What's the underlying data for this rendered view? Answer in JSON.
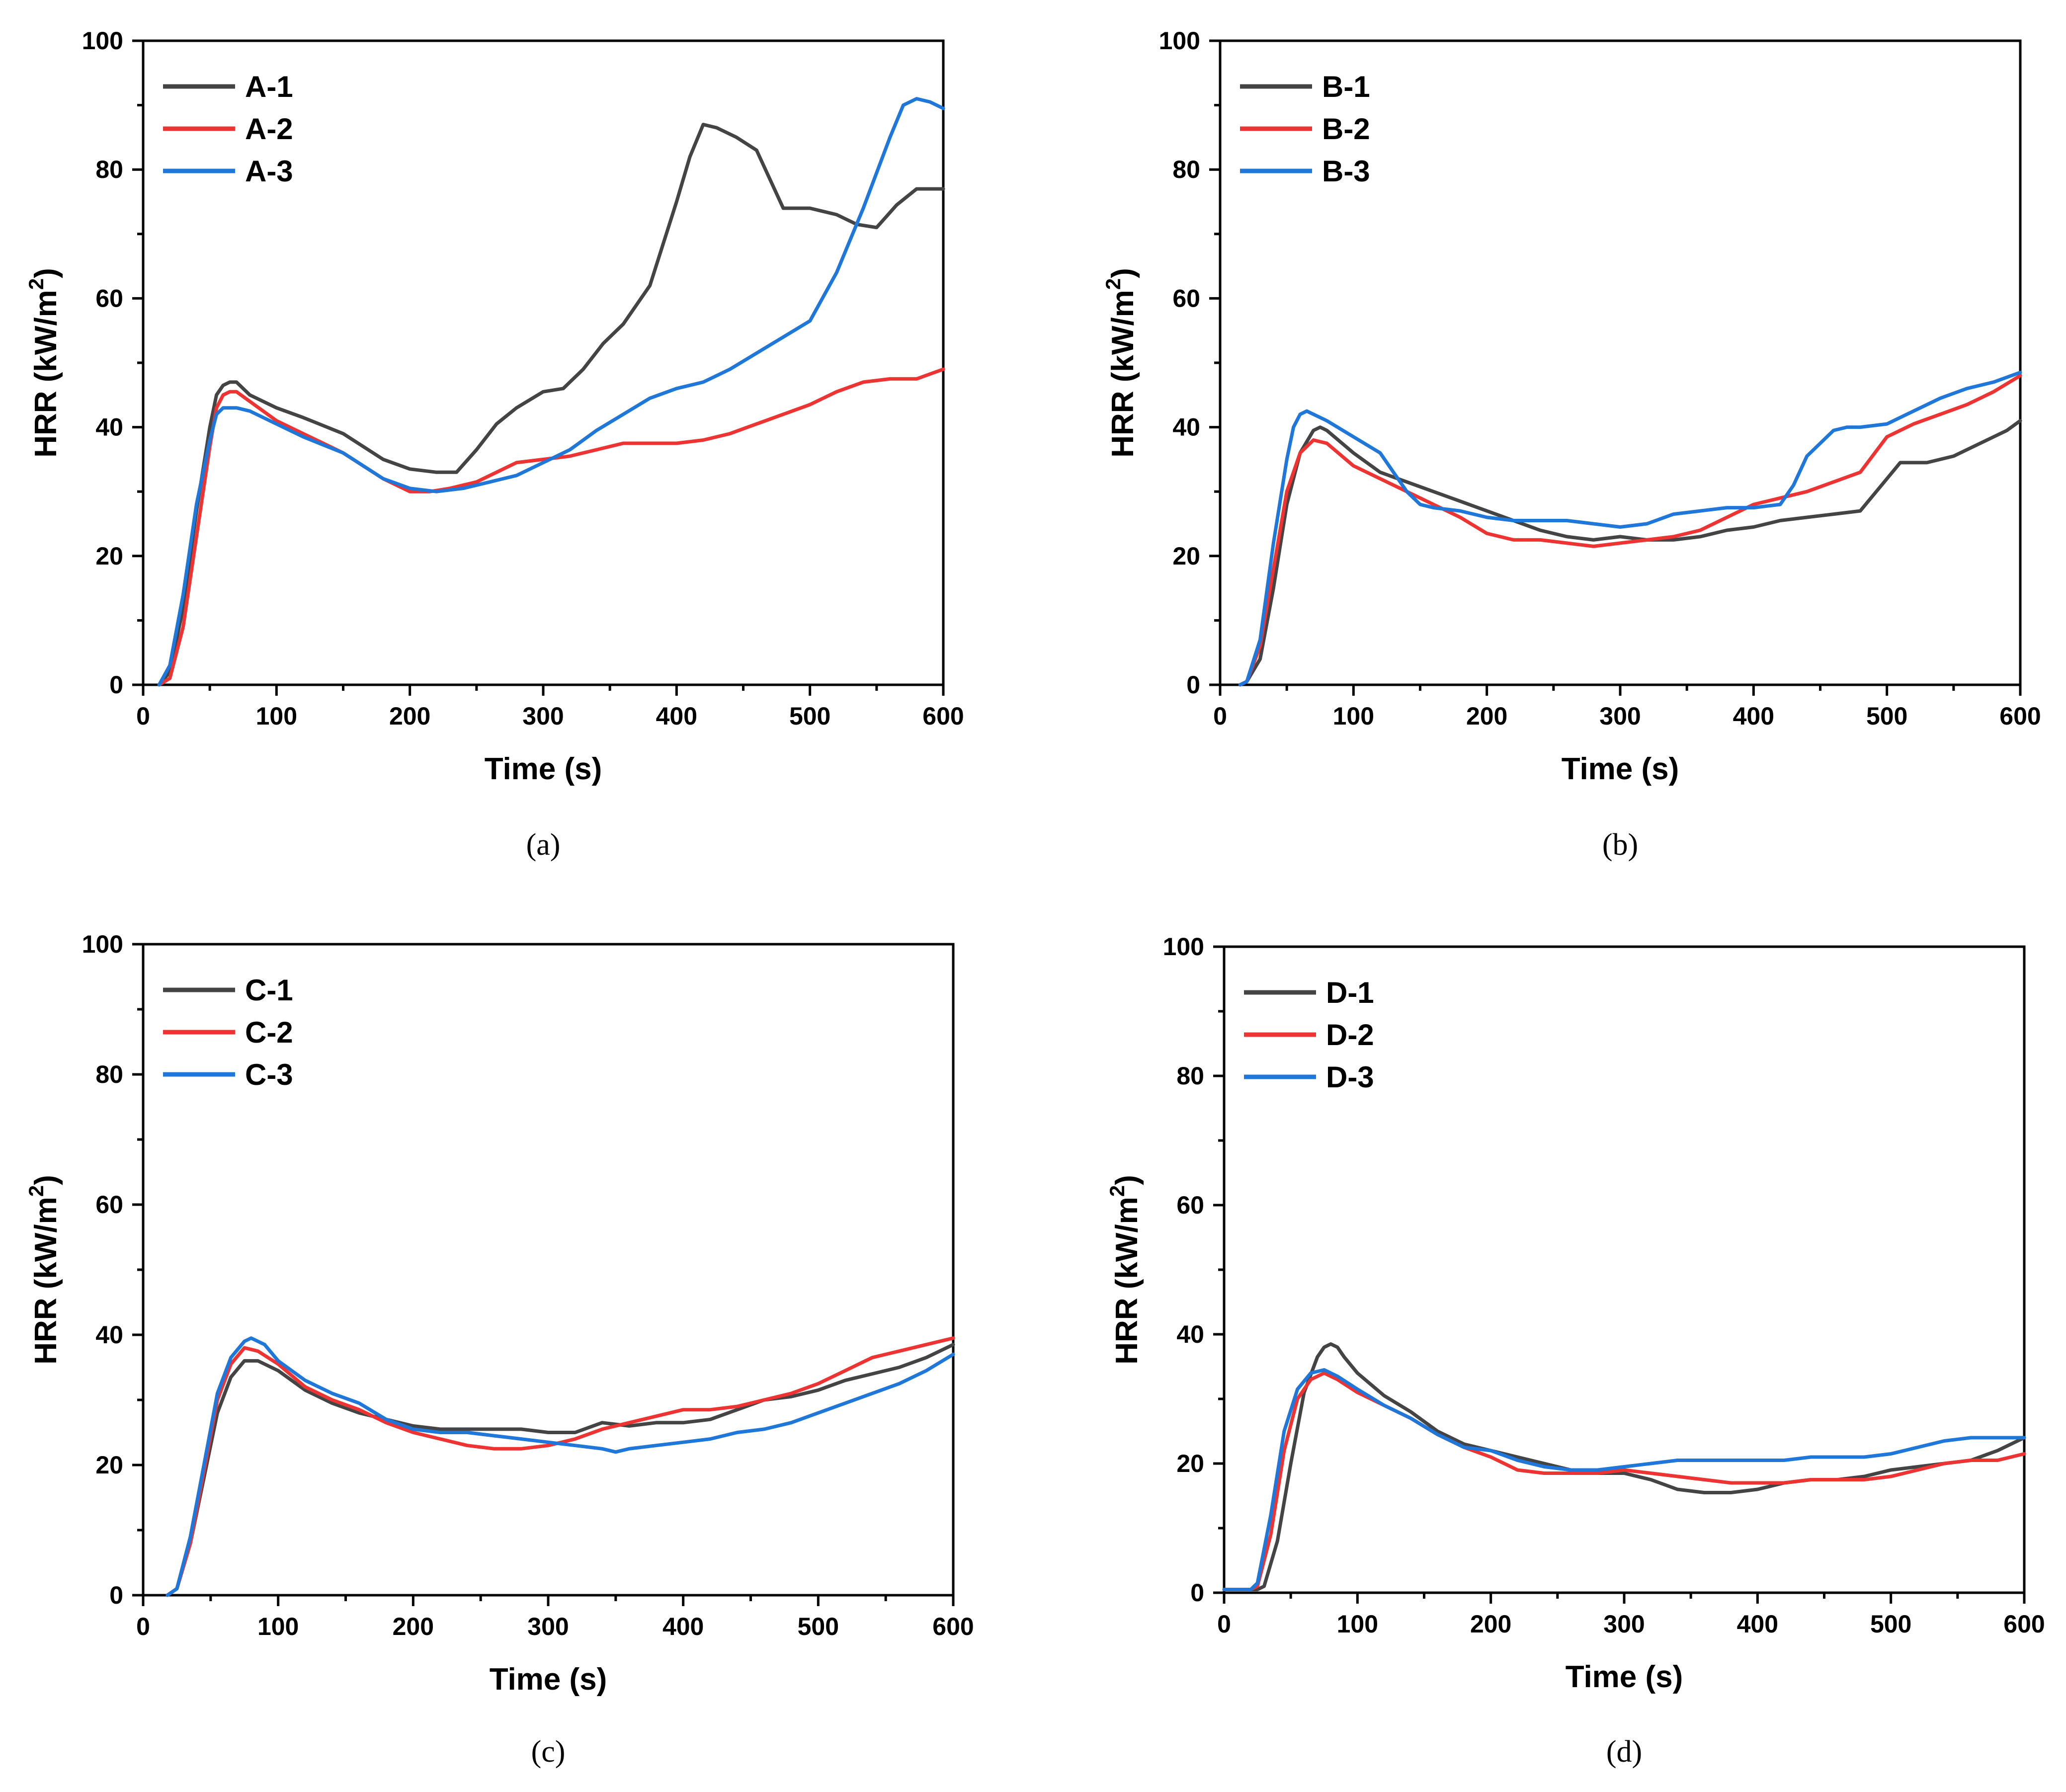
{
  "colors": {
    "series1": "#444444",
    "series2": "#ee3333",
    "series3": "#1f77d9"
  },
  "chart_data": [
    {
      "type": "line",
      "panel_label": "(a)",
      "xlabel": "Time (s)",
      "ylabel_main": "HRR (kW/m",
      "ylabel_sup": "2",
      "ylabel_close": ")",
      "xlim": [
        0,
        600
      ],
      "ylim": [
        0,
        100
      ],
      "xticks": [
        "0",
        "100",
        "200",
        "300",
        "400",
        "500",
        "600"
      ],
      "yticks": [
        "0",
        "20",
        "40",
        "60",
        "80",
        "100"
      ],
      "legend_position": "top-left",
      "series": [
        {
          "name": "A-1",
          "x": [
            12,
            20,
            30,
            40,
            50,
            55,
            60,
            65,
            70,
            80,
            100,
            120,
            150,
            180,
            200,
            220,
            235,
            250,
            265,
            280,
            300,
            315,
            330,
            345,
            360,
            380,
            400,
            410,
            420,
            430,
            445,
            460,
            480,
            500,
            520,
            535,
            550,
            565,
            580,
            590,
            600
          ],
          "y": [
            0,
            2,
            12,
            27,
            40,
            45,
            46.5,
            47,
            47,
            45,
            43,
            41.5,
            39,
            35,
            33.5,
            33,
            33,
            36.5,
            40.5,
            43,
            45.5,
            46,
            49,
            53,
            56,
            62,
            75,
            82,
            87,
            86.5,
            85,
            83,
            74,
            74,
            73,
            71.5,
            71,
            74.5,
            77,
            77,
            77
          ]
        },
        {
          "name": "A-2",
          "x": [
            12,
            20,
            30,
            40,
            50,
            55,
            60,
            65,
            70,
            80,
            100,
            120,
            150,
            180,
            200,
            215,
            230,
            250,
            265,
            280,
            300,
            320,
            340,
            360,
            380,
            400,
            420,
            440,
            460,
            480,
            500,
            520,
            540,
            560,
            580,
            600
          ],
          "y": [
            0,
            1,
            9,
            23,
            37,
            43,
            45,
            45.5,
            45.5,
            44,
            41,
            39,
            36,
            32,
            30,
            30,
            30.5,
            31.5,
            33,
            34.5,
            35,
            35.5,
            36.5,
            37.5,
            37.5,
            37.5,
            38,
            39,
            40.5,
            42,
            43.5,
            45.5,
            47,
            47.5,
            47.5,
            49
          ]
        },
        {
          "name": "A-3",
          "x": [
            12,
            20,
            30,
            40,
            50,
            55,
            60,
            70,
            80,
            100,
            120,
            150,
            180,
            200,
            220,
            240,
            260,
            280,
            300,
            320,
            340,
            360,
            380,
            400,
            420,
            440,
            460,
            480,
            500,
            520,
            540,
            560,
            570,
            580,
            590,
            600
          ],
          "y": [
            0,
            3,
            14,
            28,
            38,
            42,
            43,
            43,
            42.5,
            40.5,
            38.5,
            36,
            32,
            30.5,
            30,
            30.5,
            31.5,
            32.5,
            34.5,
            36.5,
            39.5,
            42,
            44.5,
            46,
            47,
            49,
            51.5,
            54,
            56.5,
            64,
            74,
            85,
            90,
            91,
            90.5,
            89.5
          ]
        }
      ]
    },
    {
      "type": "line",
      "panel_label": "(b)",
      "xlabel": "Time (s)",
      "ylabel_main": "HRR (kW/m",
      "ylabel_sup": "2",
      "ylabel_close": ")",
      "xlim": [
        0,
        600
      ],
      "ylim": [
        0,
        100
      ],
      "xticks": [
        "0",
        "100",
        "200",
        "300",
        "400",
        "500",
        "600"
      ],
      "yticks": [
        "0",
        "20",
        "40",
        "60",
        "80",
        "100"
      ],
      "legend_position": "top-left",
      "series": [
        {
          "name": "B-1",
          "x": [
            15,
            20,
            30,
            40,
            50,
            60,
            70,
            75,
            80,
            100,
            120,
            140,
            160,
            180,
            200,
            220,
            240,
            260,
            280,
            300,
            320,
            340,
            360,
            380,
            400,
            420,
            440,
            460,
            480,
            500,
            510,
            530,
            550,
            570,
            590,
            600
          ],
          "y": [
            0,
            0.5,
            4,
            15,
            28,
            36,
            39.5,
            40,
            39.5,
            36,
            33,
            31.5,
            30,
            28.5,
            27,
            25.5,
            24,
            23,
            22.5,
            23,
            22.5,
            22.5,
            23,
            24,
            24.5,
            25.5,
            26,
            26.5,
            27,
            32,
            34.5,
            34.5,
            35.5,
            37.5,
            39.5,
            41
          ]
        },
        {
          "name": "B-2",
          "x": [
            15,
            20,
            30,
            40,
            50,
            60,
            70,
            80,
            100,
            120,
            140,
            160,
            180,
            200,
            220,
            240,
            260,
            280,
            300,
            320,
            340,
            360,
            380,
            400,
            420,
            440,
            460,
            480,
            500,
            520,
            540,
            560,
            580,
            600
          ],
          "y": [
            0,
            0.5,
            6,
            18,
            30,
            36,
            38,
            37.5,
            34,
            32,
            30,
            28,
            26,
            23.5,
            22.5,
            22.5,
            22,
            21.5,
            22,
            22.5,
            23,
            24,
            26,
            28,
            29,
            30,
            31.5,
            33,
            38.5,
            40.5,
            42,
            43.5,
            45.5,
            48
          ]
        },
        {
          "name": "B-3",
          "x": [
            15,
            20,
            30,
            40,
            50,
            55,
            60,
            65,
            70,
            80,
            100,
            120,
            130,
            140,
            150,
            160,
            180,
            200,
            220,
            240,
            260,
            280,
            300,
            320,
            340,
            360,
            380,
            400,
            420,
            430,
            440,
            450,
            460,
            470,
            480,
            500,
            520,
            540,
            560,
            580,
            600
          ],
          "y": [
            0,
            0.5,
            7,
            22,
            35,
            40,
            42,
            42.5,
            42,
            41,
            38.5,
            36,
            33,
            30,
            28,
            27.5,
            27,
            26,
            25.5,
            25.5,
            25.5,
            25,
            24.5,
            25,
            26.5,
            27,
            27.5,
            27.5,
            28,
            31,
            35.5,
            37.5,
            39.5,
            40,
            40,
            40.5,
            42.5,
            44.5,
            46,
            47,
            48.5
          ]
        }
      ]
    },
    {
      "type": "line",
      "panel_label": "(c)",
      "xlabel": "Time (s)",
      "ylabel_main": "HRR (kW/m",
      "ylabel_sup": "2",
      "ylabel_close": ")",
      "xlim": [
        0,
        600
      ],
      "ylim": [
        0,
        100
      ],
      "xticks": [
        "0",
        "100",
        "200",
        "300",
        "400",
        "500",
        "600"
      ],
      "yticks": [
        "0",
        "20",
        "40",
        "60",
        "80",
        "100"
      ],
      "legend_position": "top-left",
      "series": [
        {
          "name": "C-1",
          "x": [
            18,
            25,
            35,
            45,
            55,
            65,
            75,
            85,
            100,
            120,
            140,
            160,
            180,
            200,
            220,
            250,
            280,
            300,
            320,
            340,
            360,
            380,
            400,
            420,
            440,
            460,
            480,
            500,
            520,
            540,
            560,
            580,
            600
          ],
          "y": [
            0,
            1,
            8,
            18,
            28,
            33.5,
            36,
            36,
            34.5,
            31.5,
            29.5,
            28,
            27,
            26,
            25.5,
            25.5,
            25.5,
            25,
            25,
            26.5,
            26,
            26.5,
            26.5,
            27,
            28.5,
            30,
            30.5,
            31.5,
            33,
            34,
            35,
            36.5,
            38.5
          ]
        },
        {
          "name": "C-2",
          "x": [
            18,
            25,
            35,
            45,
            55,
            65,
            75,
            85,
            100,
            120,
            140,
            160,
            180,
            200,
            220,
            240,
            260,
            280,
            300,
            320,
            340,
            360,
            380,
            400,
            420,
            440,
            460,
            480,
            500,
            520,
            540,
            560,
            580,
            600
          ],
          "y": [
            0,
            1,
            8,
            19,
            30,
            35.5,
            38,
            37.5,
            35.5,
            32,
            30,
            28.5,
            26.5,
            25,
            24,
            23,
            22.5,
            22.5,
            23,
            24,
            25.5,
            26.5,
            27.5,
            28.5,
            28.5,
            29,
            30,
            31,
            32.5,
            34.5,
            36.5,
            37.5,
            38.5,
            39.5
          ]
        },
        {
          "name": "C-3",
          "x": [
            18,
            25,
            35,
            45,
            55,
            65,
            75,
            80,
            90,
            100,
            120,
            140,
            160,
            180,
            200,
            220,
            240,
            260,
            280,
            300,
            320,
            340,
            350,
            360,
            380,
            400,
            420,
            440,
            460,
            480,
            500,
            520,
            540,
            560,
            580,
            600
          ],
          "y": [
            0,
            1,
            9,
            20,
            31,
            36.5,
            39,
            39.5,
            38.5,
            36,
            33,
            31,
            29.5,
            27,
            25.5,
            25,
            25,
            24.5,
            24,
            23.5,
            23,
            22.5,
            22,
            22.5,
            23,
            23.5,
            24,
            25,
            25.5,
            26.5,
            28,
            29.5,
            31,
            32.5,
            34.5,
            37
          ]
        }
      ]
    },
    {
      "type": "line",
      "panel_label": "(d)",
      "xlabel": "Time (s)",
      "ylabel_main": "HRR (kW/m",
      "ylabel_sup": "2",
      "ylabel_close": ")",
      "xlim": [
        0,
        600
      ],
      "ylim": [
        0,
        100
      ],
      "xticks": [
        "0",
        "100",
        "200",
        "300",
        "400",
        "500",
        "600"
      ],
      "yticks": [
        "0",
        "20",
        "40",
        "60",
        "80",
        "100"
      ],
      "legend_position": "top-left",
      "series": [
        {
          "name": "D-1",
          "x": [
            0,
            25,
            30,
            40,
            50,
            60,
            70,
            75,
            80,
            85,
            90,
            100,
            120,
            140,
            160,
            180,
            200,
            220,
            240,
            260,
            280,
            300,
            320,
            340,
            360,
            380,
            400,
            420,
            440,
            460,
            480,
            500,
            520,
            540,
            560,
            580,
            600
          ],
          "y": [
            0.5,
            0.5,
            1,
            8,
            20,
            31,
            36.5,
            38,
            38.5,
            38,
            36.5,
            34,
            30.5,
            28,
            25,
            23,
            22,
            21,
            20,
            19,
            18.5,
            18.5,
            17.5,
            16,
            15.5,
            15.5,
            16,
            17,
            17.5,
            17.5,
            18,
            19,
            19.5,
            20,
            20.5,
            22,
            24
          ]
        },
        {
          "name": "D-2",
          "x": [
            0,
            20,
            25,
            35,
            45,
            55,
            65,
            75,
            85,
            100,
            120,
            140,
            160,
            180,
            200,
            220,
            240,
            260,
            280,
            300,
            320,
            340,
            360,
            380,
            400,
            420,
            440,
            460,
            480,
            500,
            520,
            540,
            560,
            580,
            600
          ],
          "y": [
            0.5,
            0.5,
            1,
            9,
            22,
            30,
            33,
            34,
            33,
            31,
            29,
            27,
            24.5,
            22.5,
            21,
            19,
            18.5,
            18.5,
            18.5,
            19,
            18.5,
            18,
            17.5,
            17,
            17,
            17,
            17.5,
            17.5,
            17.5,
            18,
            19,
            20,
            20.5,
            20.5,
            21.5
          ]
        },
        {
          "name": "D-3",
          "x": [
            0,
            20,
            25,
            35,
            45,
            55,
            65,
            75,
            85,
            100,
            120,
            140,
            160,
            180,
            200,
            220,
            240,
            260,
            280,
            300,
            320,
            340,
            360,
            380,
            400,
            420,
            440,
            460,
            480,
            500,
            520,
            540,
            560,
            580,
            600
          ],
          "y": [
            0.5,
            0.5,
            1.5,
            12,
            25,
            31.5,
            34,
            34.5,
            33.5,
            31.5,
            29,
            27,
            24.5,
            22.5,
            22,
            20.5,
            19.5,
            19,
            19,
            19.5,
            20,
            20.5,
            20.5,
            20.5,
            20.5,
            20.5,
            21,
            21,
            21,
            21.5,
            22.5,
            23.5,
            24,
            24,
            24
          ]
        }
      ]
    }
  ]
}
